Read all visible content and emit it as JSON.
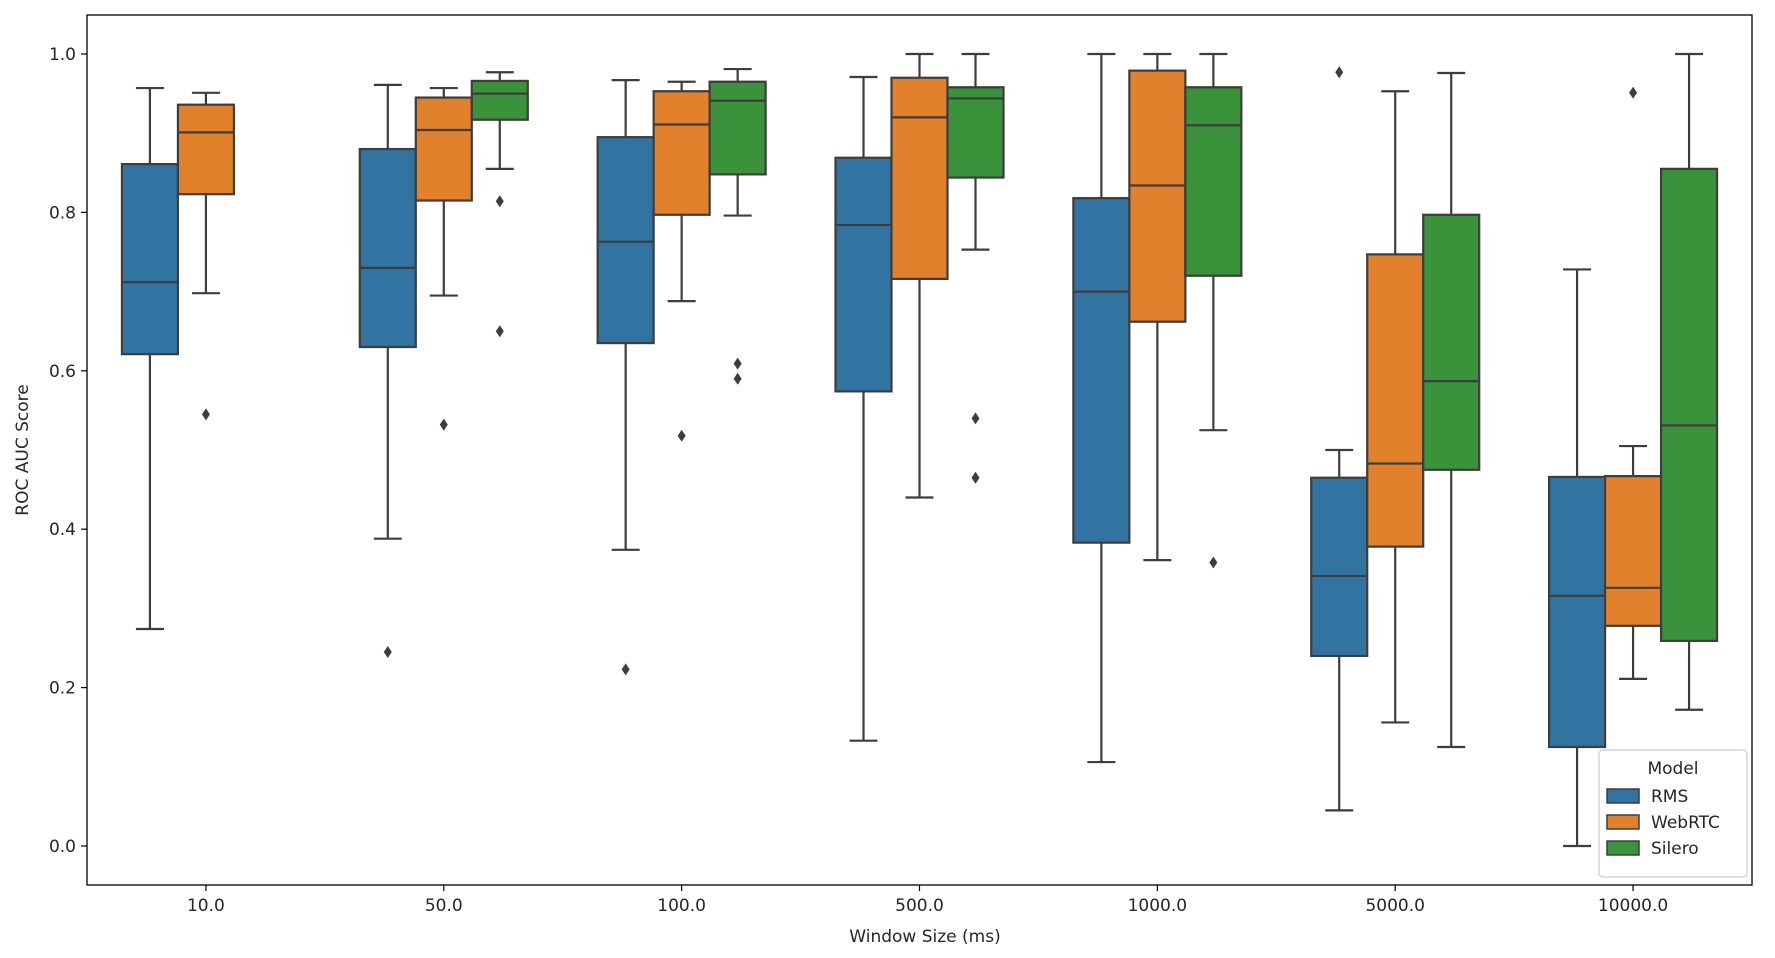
{
  "chart_data": {
    "type": "box",
    "xlabel": "Window Size (ms)",
    "ylabel": "ROC AUC Score",
    "categories": [
      "10.0",
      "50.0",
      "100.0",
      "500.0",
      "1000.0",
      "5000.0",
      "10000.0"
    ],
    "ylim": [
      -0.05,
      1.05
    ],
    "yticks": [
      "0.0",
      "0.2",
      "0.4",
      "0.6",
      "0.8",
      "1.0"
    ],
    "grid": false,
    "legend": {
      "title": "Model",
      "position": "bottom-right",
      "entries": [
        "RMS",
        "WebRTC",
        "Silero"
      ]
    },
    "colors": {
      "RMS": "#3274a1",
      "WebRTC": "#e1812c",
      "Silero": "#3a923a",
      "line": "#3d3d3d"
    },
    "series": [
      {
        "name": "RMS",
        "boxes": [
          {
            "whislo": 0.274,
            "q1": 0.621,
            "med": 0.712,
            "q3": 0.861,
            "whishi": 0.957,
            "fliers": []
          },
          {
            "whislo": 0.388,
            "q1": 0.63,
            "med": 0.73,
            "q3": 0.88,
            "whishi": 0.961,
            "fliers": [
              0.245
            ]
          },
          {
            "whislo": 0.374,
            "q1": 0.635,
            "med": 0.763,
            "q3": 0.895,
            "whishi": 0.967,
            "fliers": [
              0.223
            ]
          },
          {
            "whislo": 0.133,
            "q1": 0.574,
            "med": 0.784,
            "q3": 0.869,
            "whishi": 0.971,
            "fliers": []
          },
          {
            "whislo": 0.106,
            "q1": 0.383,
            "med": 0.7,
            "q3": 0.818,
            "whishi": 1.0,
            "fliers": []
          },
          {
            "whislo": 0.045,
            "q1": 0.24,
            "med": 0.341,
            "q3": 0.465,
            "whishi": 0.5,
            "fliers": [
              0.977
            ]
          },
          {
            "whislo": 0.0,
            "q1": 0.125,
            "med": 0.316,
            "q3": 0.466,
            "whishi": 0.728,
            "fliers": []
          }
        ]
      },
      {
        "name": "WebRTC",
        "boxes": [
          {
            "whislo": 0.698,
            "q1": 0.823,
            "med": 0.901,
            "q3": 0.936,
            "whishi": 0.951,
            "fliers": [
              0.545
            ]
          },
          {
            "whislo": 0.695,
            "q1": 0.815,
            "med": 0.904,
            "q3": 0.945,
            "whishi": 0.957,
            "fliers": [
              0.532
            ]
          },
          {
            "whislo": 0.688,
            "q1": 0.797,
            "med": 0.911,
            "q3": 0.953,
            "whishi": 0.965,
            "fliers": [
              0.518
            ]
          },
          {
            "whislo": 0.44,
            "q1": 0.716,
            "med": 0.92,
            "q3": 0.97,
            "whishi": 1.0,
            "fliers": []
          },
          {
            "whislo": 0.361,
            "q1": 0.662,
            "med": 0.834,
            "q3": 0.979,
            "whishi": 1.0,
            "fliers": []
          },
          {
            "whislo": 0.156,
            "q1": 0.378,
            "med": 0.483,
            "q3": 0.747,
            "whishi": 0.953,
            "fliers": []
          },
          {
            "whislo": 0.211,
            "q1": 0.278,
            "med": 0.326,
            "q3": 0.467,
            "whishi": 0.505,
            "fliers": [
              0.951
            ]
          }
        ]
      },
      {
        "name": "Silero",
        "boxes": [
          null,
          {
            "whislo": 0.855,
            "q1": 0.917,
            "med": 0.95,
            "q3": 0.966,
            "whishi": 0.977,
            "fliers": [
              0.814,
              0.65
            ]
          },
          {
            "whislo": 0.796,
            "q1": 0.848,
            "med": 0.941,
            "q3": 0.965,
            "whishi": 0.981,
            "fliers": [
              0.609,
              0.59
            ]
          },
          {
            "whislo": 0.753,
            "q1": 0.844,
            "med": 0.944,
            "q3": 0.958,
            "whishi": 1.0,
            "fliers": [
              0.54,
              0.465
            ]
          },
          {
            "whislo": 0.525,
            "q1": 0.72,
            "med": 0.91,
            "q3": 0.958,
            "whishi": 1.0,
            "fliers": [
              0.358
            ]
          },
          {
            "whislo": 0.125,
            "q1": 0.475,
            "med": 0.587,
            "q3": 0.797,
            "whishi": 0.976,
            "fliers": []
          },
          {
            "whislo": 0.172,
            "q1": 0.259,
            "med": 0.531,
            "q3": 0.855,
            "whishi": 1.0,
            "fliers": []
          }
        ]
      }
    ]
  }
}
